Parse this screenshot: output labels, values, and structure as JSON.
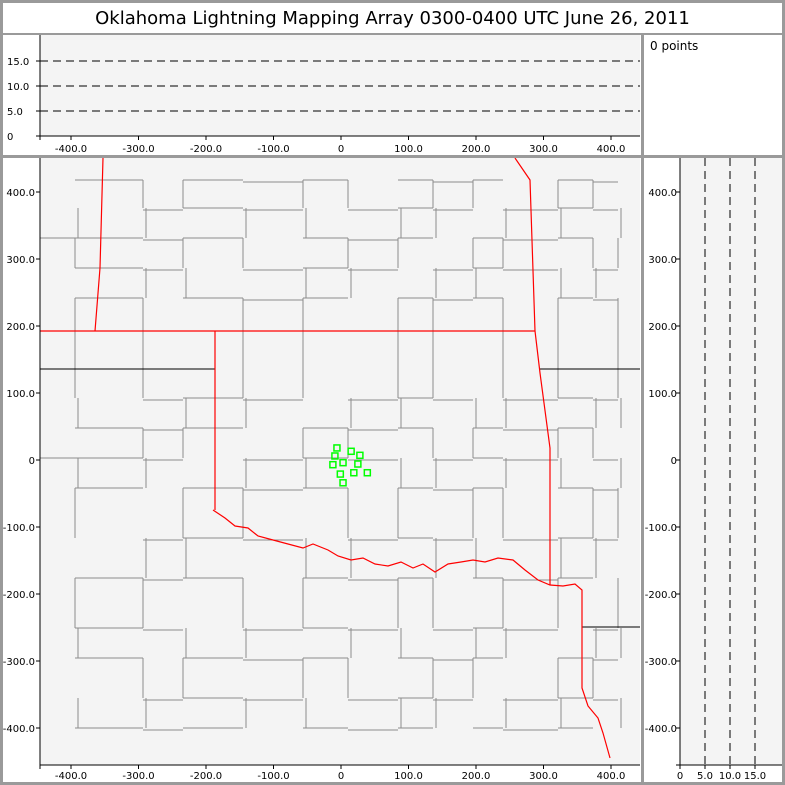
{
  "title": "Oklahoma Lightning Mapping Array   0300-0400 UTC  June 26, 2011",
  "point_count": "0 points",
  "x_ticks": [
    "-400.0",
    "-300.0",
    "-200.0",
    "-100.0",
    "0",
    "100.0",
    "200.0",
    "300.0",
    "400.0"
  ],
  "x_tick_values": [
    -400,
    -300,
    -200,
    -100,
    0,
    100,
    200,
    300,
    400
  ],
  "y_ticks": [
    "-400.0",
    "-300.0",
    "-200.0",
    "-100.0",
    "0",
    "100.0",
    "200.0",
    "300.0",
    "400.0"
  ],
  "y_tick_values": [
    -400,
    -300,
    -200,
    -100,
    0,
    100,
    200,
    300,
    400
  ],
  "alt_ticks": [
    "0",
    "5.0",
    "10.0",
    "15.0"
  ],
  "alt_tick_values": [
    0,
    5,
    10,
    15
  ],
  "colors": {
    "state_border": "#ff0000",
    "county_border": "#8c8c8c",
    "station": "#00ff00",
    "plot_bg": "#f4f4f4"
  },
  "stations_km": [
    [
      -6,
      18
    ],
    [
      15,
      13
    ],
    [
      28,
      7
    ],
    [
      -9,
      6
    ],
    [
      3,
      -4
    ],
    [
      25,
      -6
    ],
    [
      -12,
      -7
    ],
    [
      -1,
      -21
    ],
    [
      19,
      -19
    ],
    [
      39,
      -19
    ],
    [
      3,
      -34
    ]
  ]
}
